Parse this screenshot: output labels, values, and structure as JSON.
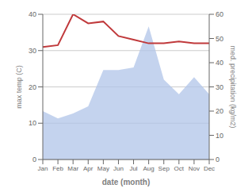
{
  "chart_data": {
    "type": "combo",
    "xlabel": "date (month)",
    "ylabel": "max temp (C)",
    "y2label": "med. precipitation (kg/m2)",
    "categories": [
      "Jan",
      "Feb",
      "Mar",
      "Apr",
      "May",
      "Jun",
      "Jul",
      "Aug",
      "Sep",
      "Oct",
      "Nov",
      "Dec"
    ],
    "series": [
      {
        "type": "area",
        "axis": "y2",
        "color": "#b0c4e8",
        "values": [
          20.0,
          17.0,
          19.0,
          22.0,
          37.0,
          37.0,
          38.0,
          55.0,
          33.0,
          27.0,
          34.0,
          27.0
        ]
      },
      {
        "type": "line",
        "color": "#c0393b",
        "values": [
          31.0,
          31.5,
          40.0,
          37.5,
          38.0,
          34.0,
          33.0,
          32.0,
          32.0,
          32.5,
          32.0,
          32.0
        ]
      }
    ],
    "ylim": [
      0,
      40
    ],
    "yticks": [
      0,
      10,
      20,
      30,
      40
    ],
    "y2lim": [
      0,
      60
    ],
    "y2ticks": [
      0,
      10,
      20,
      30,
      40,
      50,
      60
    ],
    "grid": true
  }
}
